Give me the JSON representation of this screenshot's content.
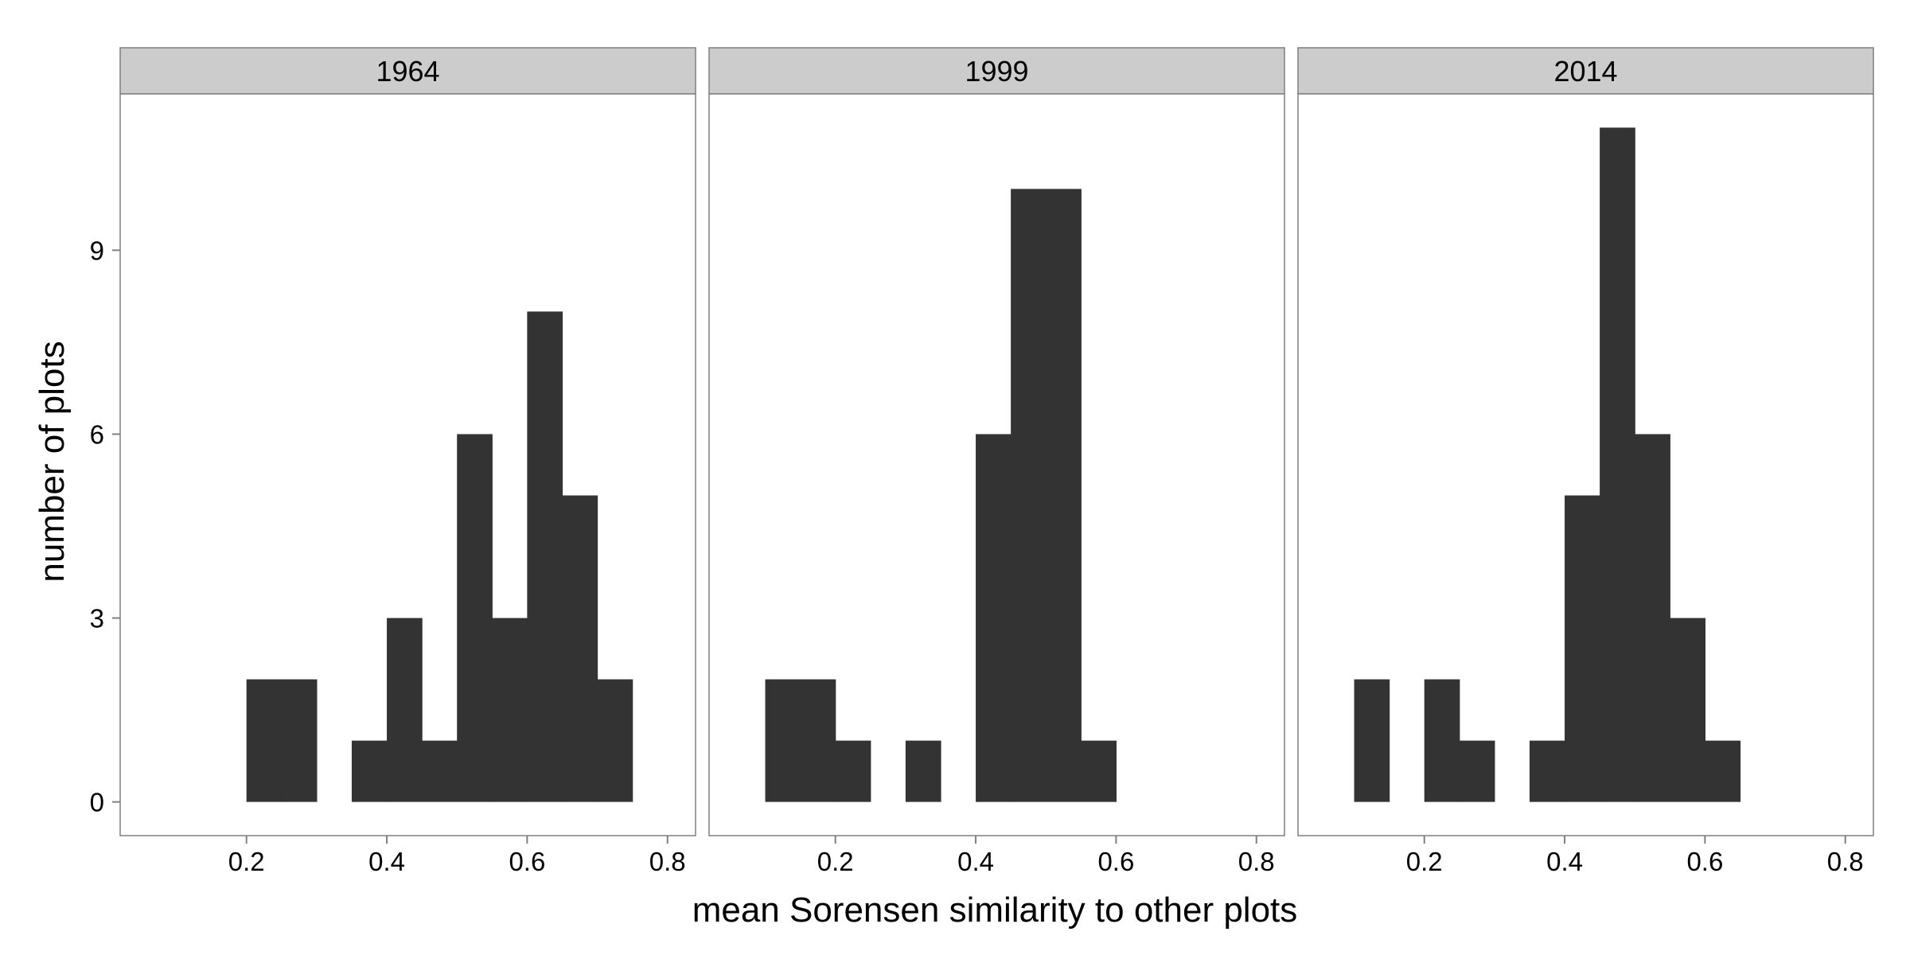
{
  "chart_data": {
    "type": "bar",
    "subtype": "faceted histogram",
    "xlabel": "mean Sorensen similarity to other plots",
    "ylabel": "number of plots",
    "xlim": [
      0.02,
      0.84
    ],
    "ylim": [
      -0.55,
      11.55
    ],
    "x_ticks": [
      0.2,
      0.4,
      0.6,
      0.8
    ],
    "x_tick_labels": [
      "0.2",
      "0.4",
      "0.6",
      "0.8"
    ],
    "y_ticks": [
      0,
      3,
      6,
      9
    ],
    "y_tick_labels": [
      "0",
      "3",
      "6",
      "9"
    ],
    "bin_width": 0.05,
    "grid": false,
    "bar_color": "#333333",
    "strip_color": "#cccccc",
    "panels": [
      {
        "label": "1964",
        "bins": [
          {
            "x0": 0.2,
            "x1": 0.25,
            "count": 2
          },
          {
            "x0": 0.25,
            "x1": 0.3,
            "count": 2
          },
          {
            "x0": 0.35,
            "x1": 0.4,
            "count": 1
          },
          {
            "x0": 0.4,
            "x1": 0.45,
            "count": 3
          },
          {
            "x0": 0.45,
            "x1": 0.5,
            "count": 1
          },
          {
            "x0": 0.5,
            "x1": 0.55,
            "count": 6
          },
          {
            "x0": 0.55,
            "x1": 0.6,
            "count": 3
          },
          {
            "x0": 0.6,
            "x1": 0.65,
            "count": 8
          },
          {
            "x0": 0.65,
            "x1": 0.7,
            "count": 5
          },
          {
            "x0": 0.7,
            "x1": 0.75,
            "count": 2
          }
        ]
      },
      {
        "label": "1999",
        "bins": [
          {
            "x0": 0.1,
            "x1": 0.15,
            "count": 2
          },
          {
            "x0": 0.15,
            "x1": 0.2,
            "count": 2
          },
          {
            "x0": 0.2,
            "x1": 0.25,
            "count": 1
          },
          {
            "x0": 0.3,
            "x1": 0.35,
            "count": 1
          },
          {
            "x0": 0.4,
            "x1": 0.45,
            "count": 6
          },
          {
            "x0": 0.45,
            "x1": 0.5,
            "count": 10
          },
          {
            "x0": 0.5,
            "x1": 0.55,
            "count": 10
          },
          {
            "x0": 0.55,
            "x1": 0.6,
            "count": 1
          }
        ]
      },
      {
        "label": "2014",
        "bins": [
          {
            "x0": 0.1,
            "x1": 0.15,
            "count": 2
          },
          {
            "x0": 0.2,
            "x1": 0.25,
            "count": 2
          },
          {
            "x0": 0.25,
            "x1": 0.3,
            "count": 1
          },
          {
            "x0": 0.35,
            "x1": 0.4,
            "count": 1
          },
          {
            "x0": 0.4,
            "x1": 0.45,
            "count": 5
          },
          {
            "x0": 0.45,
            "x1": 0.5,
            "count": 11
          },
          {
            "x0": 0.5,
            "x1": 0.55,
            "count": 6
          },
          {
            "x0": 0.55,
            "x1": 0.6,
            "count": 3
          },
          {
            "x0": 0.6,
            "x1": 0.65,
            "count": 1
          }
        ]
      }
    ]
  }
}
